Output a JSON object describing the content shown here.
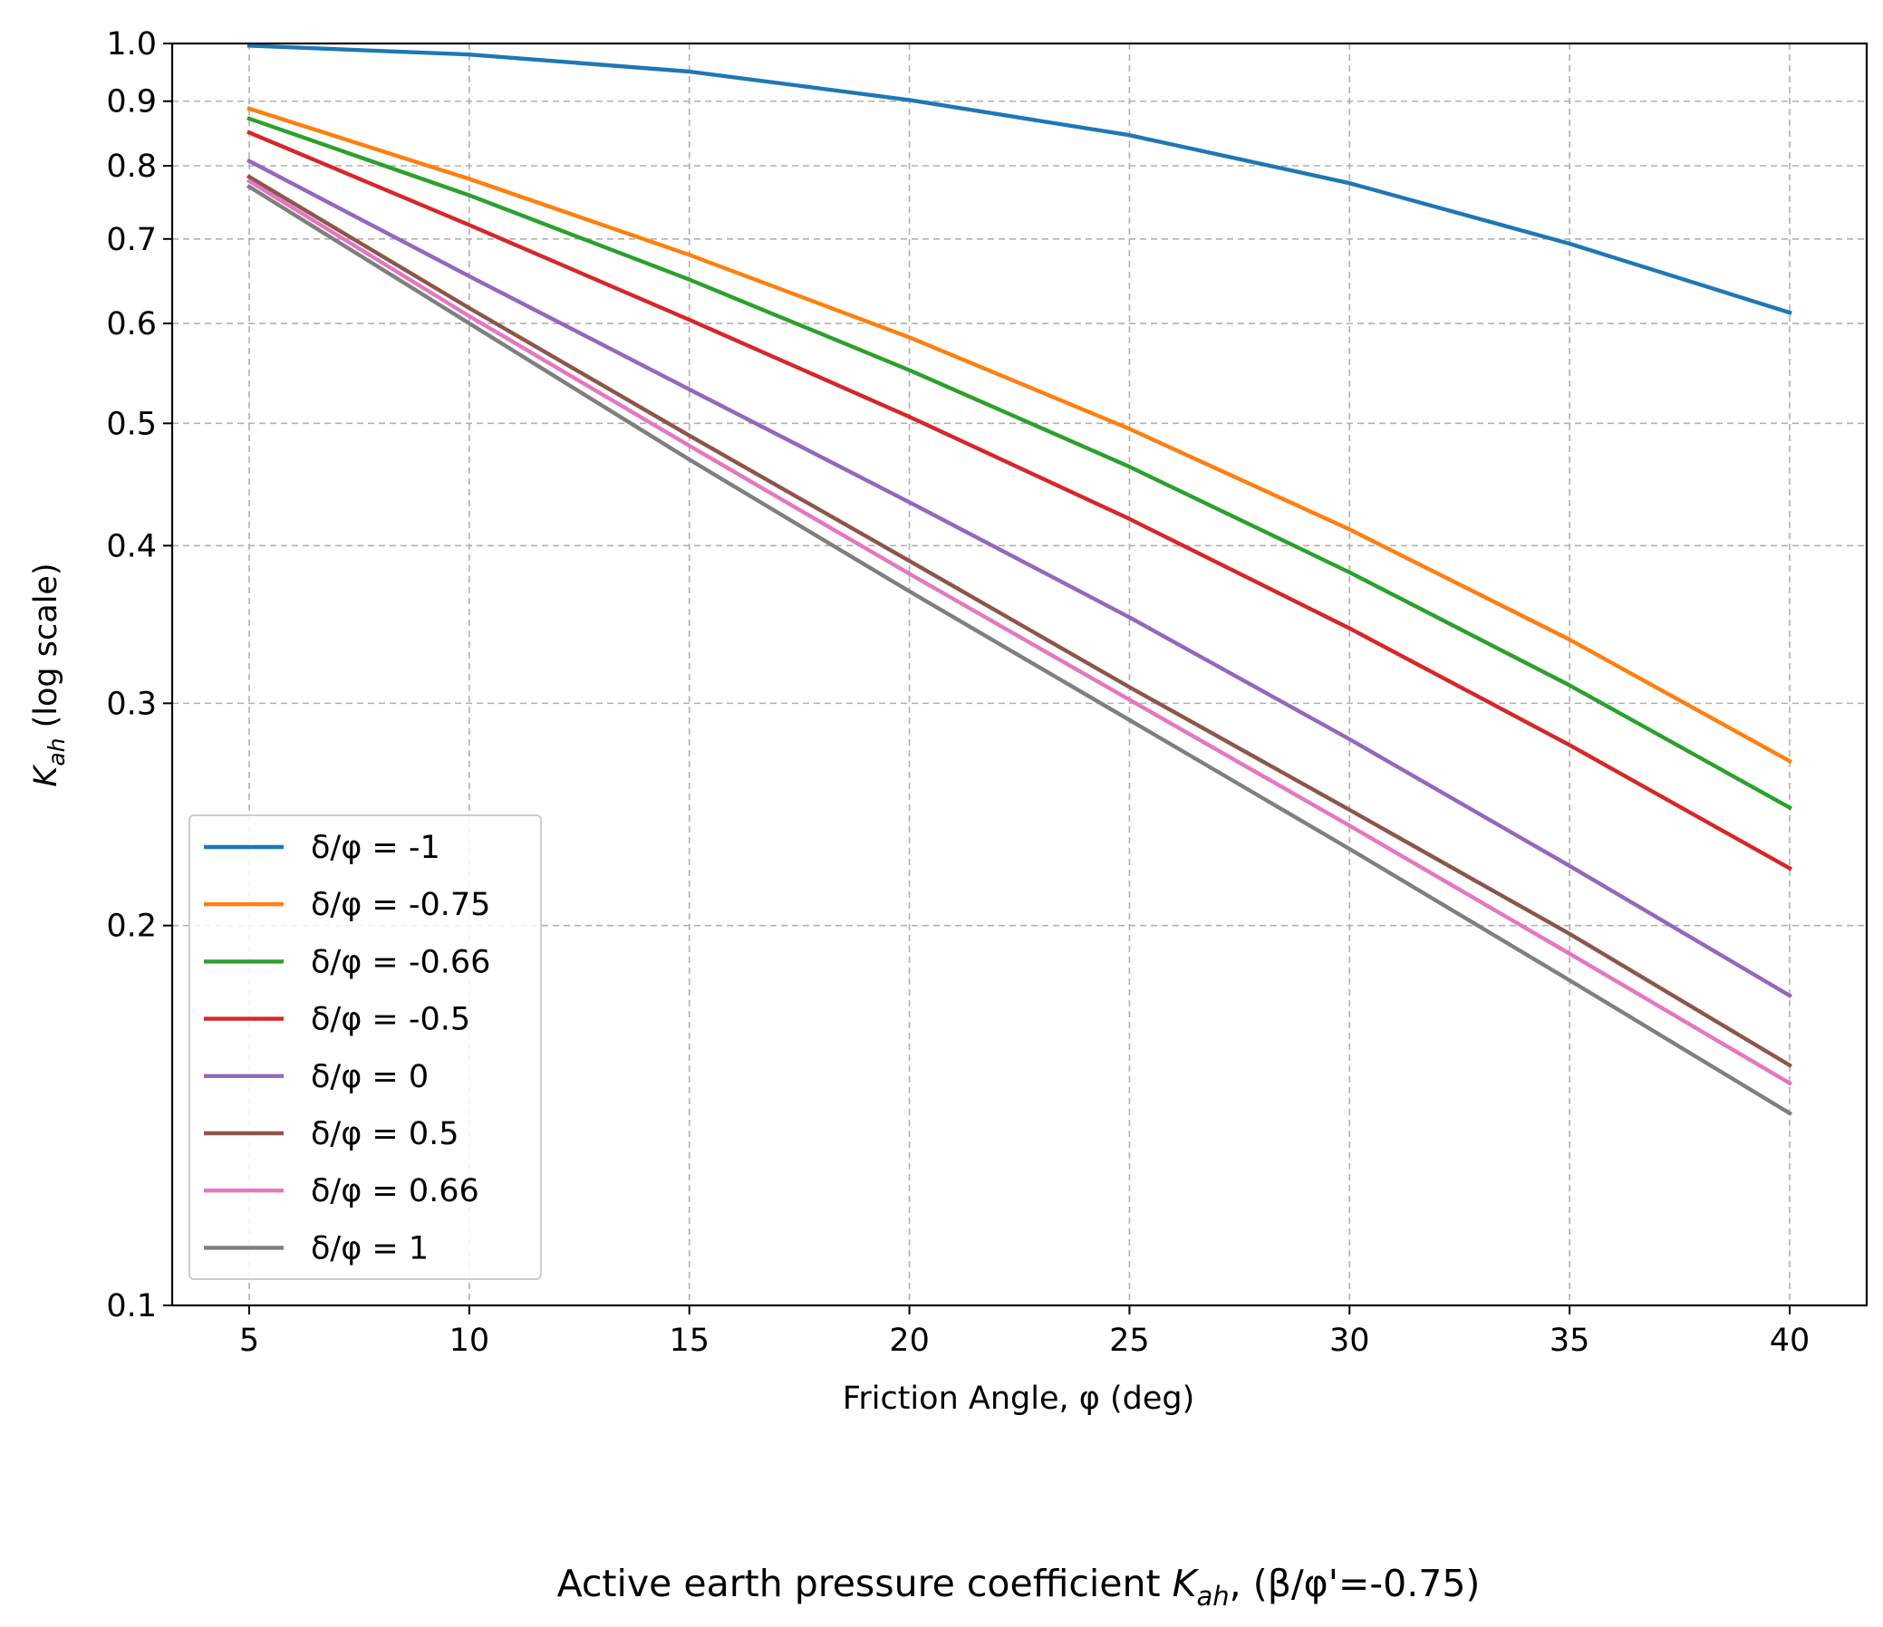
{
  "chart_data": {
    "type": "line",
    "title": "Active earth pressure coefficient K_ah, (β/φ'=-0.75)",
    "title_parts": {
      "prefix": "Active earth pressure coefficient ",
      "symbol": "K",
      "subscript": "ah",
      "suffix": ", (β/φ'=-0.75)"
    },
    "xlabel": "Friction Angle, φ (deg)",
    "ylabel": "K_ah (log scale)",
    "ylabel_parts": {
      "symbol": "K",
      "subscript": "ah",
      "suffix": " (log scale)"
    },
    "yscale": "log",
    "xlim": [
      3.25,
      41.75
    ],
    "ylim": [
      0.1,
      1.0
    ],
    "xticks": [
      5,
      10,
      15,
      20,
      25,
      30,
      35,
      40
    ],
    "xtick_labels": [
      "5",
      "10",
      "15",
      "20",
      "25",
      "30",
      "35",
      "40"
    ],
    "yticks": [
      0.1,
      0.2,
      0.3,
      0.4,
      0.5,
      0.6,
      0.7,
      0.8,
      0.9,
      1.0
    ],
    "ytick_labels": [
      "0.1",
      "0.2",
      "0.3",
      "0.4",
      "0.5",
      "0.6",
      "0.7",
      "0.8",
      "0.9",
      "1.0"
    ],
    "grid": true,
    "legend_position": "lower-left",
    "x": [
      5,
      10,
      15,
      20,
      25,
      30,
      35,
      40
    ],
    "series": [
      {
        "name": "δ/φ = -1",
        "color": "#1f77b4",
        "values": [
          0.996,
          0.98,
          0.95,
          0.902,
          0.846,
          0.775,
          0.694,
          0.612
        ]
      },
      {
        "name": "δ/φ = -0.75",
        "color": "#ff7f0e",
        "values": [
          0.888,
          0.781,
          0.68,
          0.585,
          0.495,
          0.412,
          0.337,
          0.27
        ]
      },
      {
        "name": "δ/φ = -0.66",
        "color": "#2ca02c",
        "values": [
          0.872,
          0.758,
          0.65,
          0.551,
          0.462,
          0.381,
          0.31,
          0.248
        ]
      },
      {
        "name": "δ/φ = -0.5",
        "color": "#d62728",
        "values": [
          0.85,
          0.718,
          0.604,
          0.506,
          0.42,
          0.344,
          0.278,
          0.222
        ]
      },
      {
        "name": "δ/φ = 0",
        "color": "#9467bd",
        "values": [
          0.807,
          0.654,
          0.532,
          0.433,
          0.351,
          0.281,
          0.223,
          0.176
        ]
      },
      {
        "name": "δ/φ = 0.5",
        "color": "#8c564b",
        "values": [
          0.784,
          0.617,
          0.489,
          0.389,
          0.309,
          0.247,
          0.197,
          0.155
        ]
      },
      {
        "name": "δ/φ = 0.66",
        "color": "#e377c2",
        "values": [
          0.778,
          0.608,
          0.48,
          0.38,
          0.302,
          0.24,
          0.19,
          0.15
        ]
      },
      {
        "name": "δ/φ = 1",
        "color": "#7f7f7f",
        "values": [
          0.77,
          0.6,
          0.468,
          0.368,
          0.291,
          0.23,
          0.181,
          0.142
        ]
      }
    ]
  }
}
